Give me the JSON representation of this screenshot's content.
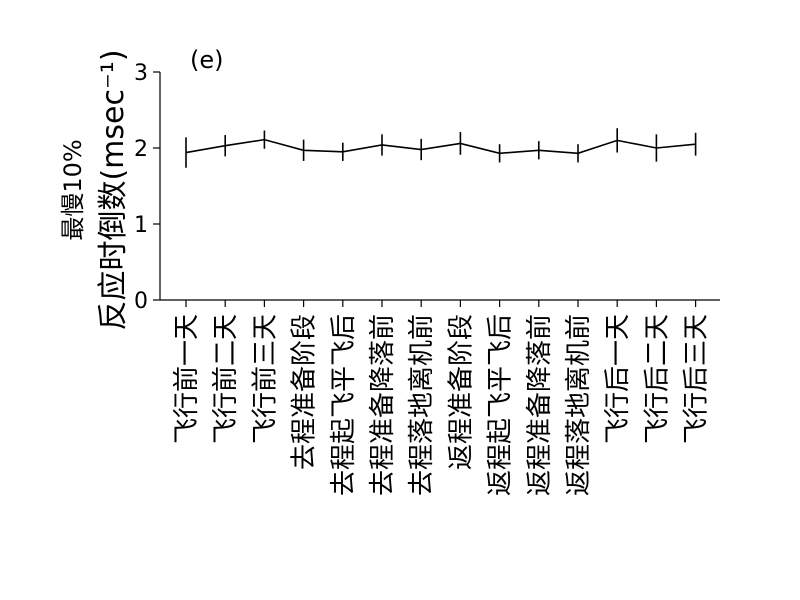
{
  "chart_data": {
    "type": "line",
    "panel_label": "(e)",
    "ylabel_line1": "最慢10%",
    "ylabel_line2": "反应时倒数(msec⁻¹)",
    "ylim": [
      0,
      3
    ],
    "yticks": [
      0,
      1,
      2,
      3
    ],
    "ytick_labels": [
      "0",
      "1",
      "2",
      "3"
    ],
    "grid": false,
    "legend": "none",
    "line_color": "#000000",
    "categories": [
      "飞行前一天",
      "飞行前二天",
      "飞行前三天",
      "去程准备阶段",
      "去程起飞平飞后",
      "去程准备降落前",
      "去程落地离机前",
      "返程准备阶段",
      "返程起飞平飞后",
      "返程准备降落前",
      "返程落地离机前",
      "飞行后一天",
      "飞行后二天",
      "飞行后三天"
    ],
    "series": [
      {
        "values": [
          1.94,
          2.03,
          2.11,
          1.97,
          1.95,
          2.04,
          1.98,
          2.06,
          1.93,
          1.97,
          1.93,
          2.1,
          2.0,
          2.05
        ],
        "errors": [
          0.2,
          0.14,
          0.12,
          0.14,
          0.12,
          0.14,
          0.14,
          0.15,
          0.12,
          0.12,
          0.12,
          0.16,
          0.18,
          0.15
        ]
      }
    ]
  }
}
